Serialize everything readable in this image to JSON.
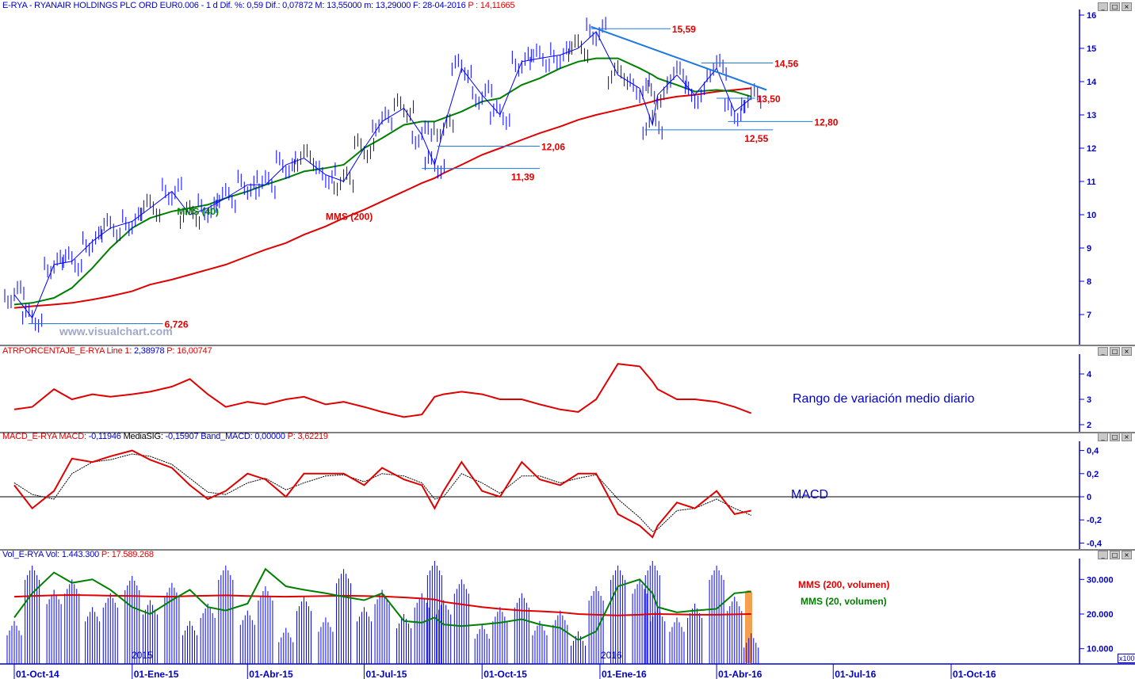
{
  "header": {
    "symbol_info": "E-RYA - RYANAIR HOLDINGS PLC ORD EUR0.006 -  1 d Dif. %: 0,59 Dif.: 0,07872 M: 13,55000 m: 13,29000 F: 28-04-2016",
    "last_price": "P : 14,11665"
  },
  "panels": {
    "atr": {
      "name": "ATRPORCENTAJE_E-RYA",
      "line1_label": "Line 1:",
      "line1_value": "2,38978",
      "p_value": "P: 16,00747",
      "caption": "Rango de variación medio diario"
    },
    "macd": {
      "name": "MACD_E-RYA",
      "macd_label": "MACD:",
      "macd_value": "-0,11946",
      "sig_label": "MediaSIG:",
      "sig_value": "-0,15907",
      "band_label": "Band_MACD:",
      "band_value": "0,00000",
      "p_value": "P: 3,62219",
      "caption": "MACD"
    },
    "volume": {
      "name": "Vol_E-RYA",
      "vol_label": "Vol:",
      "vol_value": "1.443.300",
      "p_value": "P: 17.589.268",
      "legend_200": "MMS (200, volumen)",
      "legend_20": "MMS (20, volumen)",
      "scale_note": "x100",
      "year_labels": [
        "2015",
        "2016"
      ]
    },
    "window_buttons": [
      "_",
      "□",
      "×"
    ]
  },
  "watermark": "www.visualchart.com",
  "colors": {
    "price": "#0000ff",
    "mms40": "#008000",
    "mms200": "#e00000",
    "axis": "#0000cc",
    "level_label": "#e00000",
    "trendline": "#1e78e0",
    "highlight": "#f5a050"
  },
  "chart_data": [
    {
      "type": "line",
      "title": "E-RYA price",
      "x_ticks": [
        "2014-10-01",
        "2015-01-01",
        "2015-04-01",
        "2015-07-01",
        "2015-10-01",
        "2016-01-01",
        "2016-04-01",
        "2016-07-01",
        "2016-10-01"
      ],
      "x_tick_labels": [
        "01-Oct-14",
        "01-Ene-15",
        "01-Abr-15",
        "01-Jul-15",
        "01-Oct-15",
        "01-Ene-16",
        "01-Abr-16",
        "01-Jul-16",
        "01-Oct-16"
      ],
      "x_range": [
        "2014-10-01",
        "2016-11-15"
      ],
      "dates": [
        "2014-10-01",
        "2014-10-15",
        "2014-11-01",
        "2014-11-15",
        "2014-12-01",
        "2014-12-15",
        "2015-01-01",
        "2015-01-15",
        "2015-02-01",
        "2015-02-15",
        "2015-03-01",
        "2015-03-15",
        "2015-04-01",
        "2015-04-15",
        "2015-05-01",
        "2015-05-15",
        "2015-06-01",
        "2015-06-15",
        "2015-07-01",
        "2015-07-15",
        "2015-08-01",
        "2015-08-15",
        "2015-08-25",
        "2015-09-01",
        "2015-09-15",
        "2015-10-01",
        "2015-10-15",
        "2015-11-01",
        "2015-11-15",
        "2015-12-01",
        "2015-12-15",
        "2015-12-29",
        "2016-01-15",
        "2016-02-01",
        "2016-02-11",
        "2016-02-15",
        "2016-03-01",
        "2016-03-15",
        "2016-04-01",
        "2016-04-15",
        "2016-04-28"
      ],
      "ylim": [
        6,
        16
      ],
      "y_ticks": [
        7,
        8,
        9,
        10,
        11,
        12,
        13,
        14,
        15,
        16
      ],
      "series": [
        {
          "name": "price",
          "values": [
            7.6,
            6.9,
            8.5,
            8.6,
            9.2,
            9.6,
            9.8,
            10.2,
            10.7,
            10.0,
            10.2,
            10.5,
            10.9,
            10.9,
            11.5,
            11.7,
            11.2,
            11.0,
            12.0,
            12.8,
            13.2,
            12.4,
            11.5,
            12.6,
            14.4,
            13.6,
            13.0,
            14.6,
            14.7,
            14.8,
            15.0,
            15.5,
            14.2,
            13.8,
            12.7,
            13.6,
            14.2,
            13.6,
            14.4,
            13.1,
            13.5
          ]
        },
        {
          "name": "MMS (40)",
          "values": [
            7.3,
            7.35,
            7.5,
            7.8,
            8.4,
            9.0,
            9.6,
            9.9,
            10.1,
            10.2,
            10.3,
            10.5,
            10.7,
            10.9,
            11.1,
            11.3,
            11.4,
            11.5,
            12.0,
            12.3,
            12.7,
            12.8,
            12.8,
            12.9,
            13.1,
            13.4,
            13.5,
            13.9,
            14.1,
            14.4,
            14.6,
            14.7,
            14.7,
            14.4,
            14.2,
            14.1,
            13.9,
            13.7,
            13.75,
            13.7,
            13.55
          ]
        },
        {
          "name": "MMS (200)",
          "values": [
            7.2,
            7.25,
            7.3,
            7.35,
            7.45,
            7.55,
            7.7,
            7.9,
            8.05,
            8.2,
            8.35,
            8.5,
            8.75,
            8.95,
            9.15,
            9.4,
            9.65,
            9.9,
            10.15,
            10.4,
            10.7,
            10.95,
            11.1,
            11.25,
            11.5,
            11.8,
            12.0,
            12.25,
            12.45,
            12.65,
            12.85,
            13.0,
            13.15,
            13.3,
            13.4,
            13.45,
            13.55,
            13.6,
            13.7,
            13.75,
            13.8
          ]
        }
      ],
      "levels": [
        {
          "value": 15.59,
          "label": "15,59",
          "from": "2015-12-25",
          "to": "2016-02-25",
          "label_pos": "right"
        },
        {
          "value": 14.56,
          "label": "14,56",
          "from": "2016-03-20",
          "to": "2016-05-15",
          "label_pos": "right"
        },
        {
          "value": 13.5,
          "label": "13,50",
          "from": "2016-04-01",
          "to": "2016-05-01",
          "label_pos": "right"
        },
        {
          "value": 12.8,
          "label": "12,80",
          "from": "2016-04-10",
          "to": "2016-06-15",
          "label_pos": "right"
        },
        {
          "value": 12.55,
          "label": "12,55",
          "from": "2016-02-05",
          "to": "2016-05-15",
          "label_pos": "below"
        },
        {
          "value": 12.06,
          "label": "12,06",
          "from": "2015-08-27",
          "to": "2015-11-15",
          "label_pos": "right"
        },
        {
          "value": 11.39,
          "label": "11,39",
          "from": "2015-08-15",
          "to": "2015-11-15",
          "label_pos": "below"
        },
        {
          "value": 6.726,
          "label": "6,726",
          "from": "2014-10-12",
          "to": "2015-01-25",
          "label_pos": "right"
        }
      ],
      "trendline": {
        "from": [
          "2015-12-25",
          15.65
        ],
        "to": [
          "2016-05-10",
          13.75
        ]
      },
      "annotations": [
        {
          "text": "MMS (40)",
          "date": "2015-02-05",
          "value": 10.0,
          "color": "#008000"
        },
        {
          "text": "MMS (200)",
          "date": "2015-06-01",
          "value": 9.85,
          "color": "#e00000"
        }
      ]
    },
    {
      "type": "line",
      "title": "ATRPORCENTAJE_E-RYA",
      "ylim": [
        1.8,
        4.8
      ],
      "y_ticks": [
        2,
        3,
        4
      ],
      "series": [
        {
          "name": "Line 1",
          "values": [
            2.6,
            2.7,
            3.4,
            3.0,
            3.2,
            3.1,
            3.2,
            3.3,
            3.5,
            3.8,
            3.2,
            2.7,
            2.9,
            2.8,
            3.0,
            3.1,
            2.8,
            2.9,
            2.7,
            2.5,
            2.3,
            2.4,
            3.1,
            3.2,
            3.3,
            3.2,
            3.0,
            3.0,
            2.8,
            2.6,
            2.5,
            3.0,
            4.4,
            4.3,
            3.7,
            3.4,
            3.0,
            3.0,
            2.9,
            2.7,
            2.45
          ]
        }
      ]
    },
    {
      "type": "line",
      "title": "MACD_E-RYA",
      "ylim": [
        -0.45,
        0.45
      ],
      "y_ticks": [
        0.4,
        0.2,
        0,
        -0.2,
        -0.4
      ],
      "y_tick_labels": [
        "0,4",
        "0,2",
        "0",
        "-0,2",
        "-0,4"
      ],
      "series": [
        {
          "name": "MACD",
          "values": [
            0.1,
            -0.1,
            0.05,
            0.33,
            0.3,
            0.35,
            0.4,
            0.32,
            0.25,
            0.1,
            -0.02,
            0.05,
            0.2,
            0.15,
            0.0,
            0.2,
            0.2,
            0.2,
            0.1,
            0.25,
            0.15,
            0.1,
            -0.1,
            0.05,
            0.3,
            0.05,
            0.0,
            0.3,
            0.15,
            0.1,
            0.2,
            0.2,
            -0.15,
            -0.25,
            -0.35,
            -0.25,
            -0.05,
            -0.1,
            0.05,
            -0.15,
            -0.12
          ]
        },
        {
          "name": "MediaSIG",
          "values": [
            0.12,
            0.02,
            -0.02,
            0.2,
            0.3,
            0.32,
            0.37,
            0.35,
            0.28,
            0.16,
            0.04,
            0.02,
            0.12,
            0.16,
            0.06,
            0.12,
            0.18,
            0.19,
            0.13,
            0.2,
            0.18,
            0.12,
            -0.02,
            0.0,
            0.2,
            0.12,
            0.03,
            0.18,
            0.18,
            0.12,
            0.16,
            0.19,
            -0.02,
            -0.18,
            -0.3,
            -0.28,
            -0.12,
            -0.1,
            -0.02,
            -0.1,
            -0.16
          ]
        }
      ]
    },
    {
      "type": "bar",
      "title": "Vol_E-RYA",
      "ylim": [
        5000,
        35000
      ],
      "y_ticks": [
        10000,
        20000,
        30000
      ],
      "y_tick_labels": [
        "10.000",
        "20.000",
        "30.000"
      ],
      "values": [
        18000,
        34000,
        27000,
        30000,
        22000,
        26000,
        31000,
        24000,
        29000,
        18000,
        23000,
        34000,
        21000,
        28000,
        16000,
        25000,
        19000,
        33000,
        22000,
        27000,
        20000,
        26000,
        38000,
        24000,
        30000,
        17000,
        22000,
        26000,
        18000,
        21000,
        15000,
        28000,
        34000,
        30000,
        36000,
        22000,
        19000,
        23000,
        34000,
        25000,
        14433
      ],
      "series": [
        {
          "name": "MMS (200, volumen)",
          "values": [
            25000,
            25200,
            25400,
            25500,
            25400,
            25300,
            25200,
            25100,
            25000,
            25200,
            25300,
            25400,
            25200,
            25100,
            25000,
            25100,
            25200,
            25300,
            25200,
            25100,
            24800,
            24500,
            24200,
            23500,
            22800,
            22000,
            21500,
            21000,
            20800,
            20500,
            20000,
            19800,
            19600,
            19800,
            20000,
            20000,
            19900,
            19800,
            19800,
            19900,
            20000
          ]
        },
        {
          "name": "MMS (20, volumen)",
          "values": [
            19000,
            26000,
            32000,
            29000,
            30000,
            27000,
            22000,
            20000,
            24000,
            27000,
            22000,
            21000,
            23000,
            33000,
            28000,
            27000,
            26000,
            25000,
            24000,
            26000,
            18000,
            17500,
            19000,
            17000,
            16500,
            17000,
            17500,
            18500,
            17000,
            16000,
            12500,
            15000,
            28000,
            30000,
            26000,
            22000,
            20500,
            21000,
            21500,
            26000,
            26500
          ]
        }
      ]
    }
  ]
}
